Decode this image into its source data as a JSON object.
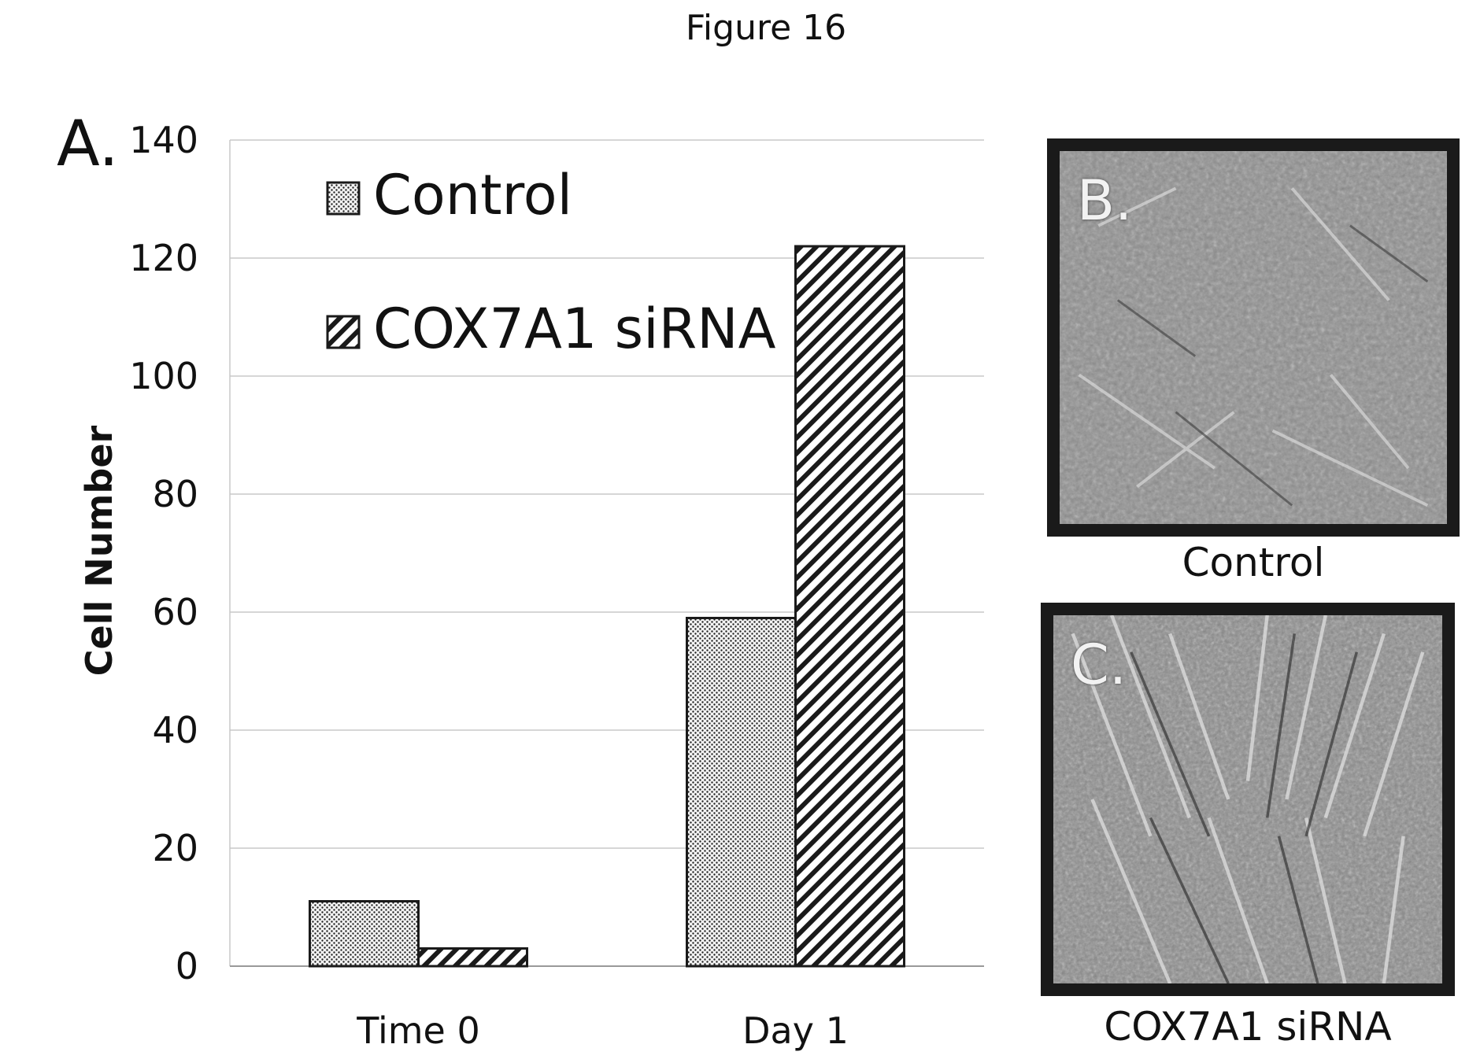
{
  "figure_title": "Figure 16",
  "panel_a_label": "A.",
  "chart_data": {
    "type": "bar",
    "categories": [
      "Time 0",
      "Day 1"
    ],
    "series": [
      {
        "name": "Control",
        "values": [
          11,
          59
        ],
        "pattern": "dots"
      },
      {
        "name": "COX7A1 siRNA",
        "values": [
          3,
          122
        ],
        "pattern": "diagonal-hatch"
      }
    ],
    "xlabel": "",
    "ylabel": "Cell Number",
    "ylim": [
      0,
      140
    ],
    "yticks": [
      0,
      20,
      40,
      60,
      80,
      100,
      120,
      140
    ],
    "grid": true,
    "legend_position": "top-left",
    "colors": {
      "bar_outline": "#1a1a1a",
      "grid": "#c8c8c8",
      "fill": "#ffffff"
    }
  },
  "photos": [
    {
      "label": "B.",
      "caption": "Control",
      "texture": "sparse-cells"
    },
    {
      "label": "C.",
      "caption": "COX7A1 siRNA",
      "texture": "dense-cells"
    }
  ]
}
